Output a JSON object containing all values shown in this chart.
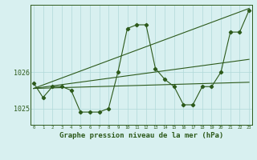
{
  "title": "Graphe pression niveau de la mer (hPa)",
  "x_labels": [
    "0",
    "1",
    "2",
    "3",
    "4",
    "5",
    "6",
    "7",
    "8",
    "9",
    "10",
    "11",
    "12",
    "13",
    "14",
    "15",
    "16",
    "17",
    "18",
    "19",
    "20",
    "21",
    "22",
    "23"
  ],
  "x_values": [
    0,
    1,
    2,
    3,
    4,
    5,
    6,
    7,
    8,
    9,
    10,
    11,
    12,
    13,
    14,
    15,
    16,
    17,
    18,
    19,
    20,
    21,
    22,
    23
  ],
  "line1_y": [
    1025.7,
    1025.3,
    1025.6,
    1025.6,
    1025.5,
    1024.9,
    1024.9,
    1024.9,
    1025.0,
    1026.0,
    1027.2,
    1027.3,
    1027.3,
    1026.1,
    1025.8,
    1025.6,
    1025.1,
    1025.1,
    1025.6,
    1025.6,
    1026.0,
    1027.1,
    1027.1,
    1027.7
  ],
  "trend1_x": [
    0,
    23
  ],
  "trend1_y": [
    1025.55,
    1027.75
  ],
  "trend2_x": [
    0,
    23
  ],
  "trend2_y": [
    1025.55,
    1026.35
  ],
  "trend3_x": [
    0,
    23
  ],
  "trend3_y": [
    1025.55,
    1025.72
  ],
  "yticks": [
    1025,
    1026
  ],
  "ylim": [
    1024.55,
    1027.85
  ],
  "xlim": [
    -0.3,
    23.3
  ],
  "line_color": "#2d5a1b",
  "bg_color": "#d8f0f0",
  "grid_color": "#b0d8d8",
  "title_fontsize": 6.5,
  "marker": "D",
  "marker_size": 2.2,
  "linewidth": 0.8
}
